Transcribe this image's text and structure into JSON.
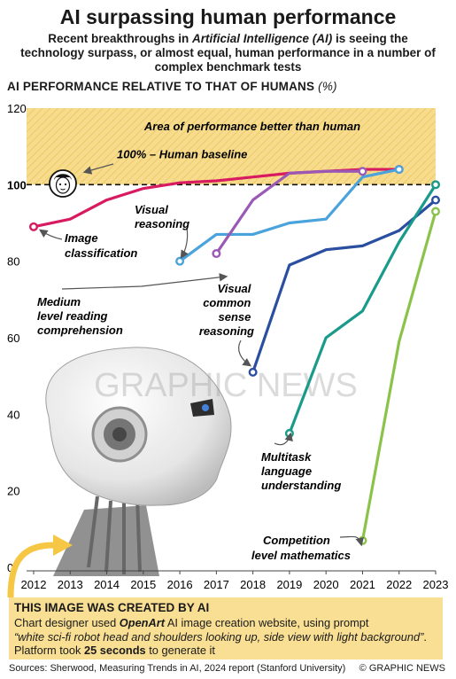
{
  "header": {
    "title": "AI surpassing human performance",
    "subtitle": "Recent breakthroughs in Artificial Intelligence (AI) is seeing the technology surpass, or almost equal, human performance in a number of complex benchmark tests",
    "axis_title": "AI PERFORMANCE RELATIVE TO THAT OF HUMANS",
    "axis_unit": "(%)"
  },
  "chart_data": {
    "type": "line",
    "title": "AI surpassing human performance",
    "ylabel": "AI PERFORMANCE RELATIVE TO THAT OF HUMANS (%)",
    "x_ticks": [
      "2012",
      "2013",
      "2014",
      "2015",
      "2016",
      "2017",
      "2018",
      "2019",
      "2020",
      "2021",
      "2022",
      "2023"
    ],
    "y_ticks": [
      "0",
      "20",
      "40",
      "60",
      "80",
      "100",
      "120"
    ],
    "ylim": [
      0,
      120
    ],
    "xlim": [
      2012,
      2023
    ],
    "baseline": 100,
    "grid": false,
    "series": [
      {
        "name": "Image classification",
        "color": "#d81b60",
        "x": [
          2012,
          2013,
          2014,
          2015,
          2016,
          2017,
          2018,
          2019,
          2020,
          2021,
          2022
        ],
        "values": [
          89,
          91,
          96,
          99,
          100.5,
          101,
          102,
          103,
          103.5,
          104,
          104
        ]
      },
      {
        "name": "Visual reasoning",
        "color": "#4aa3dc",
        "x": [
          2016,
          2017,
          2018,
          2019,
          2020,
          2021,
          2022
        ],
        "values": [
          80,
          87,
          87,
          90,
          91,
          102,
          104
        ]
      },
      {
        "name": "Medium level reading comprehension",
        "color": "#9b59b6",
        "x": [
          2017,
          2018,
          2019,
          2020,
          2021
        ],
        "values": [
          82,
          96,
          103,
          103.5,
          103.5
        ]
      },
      {
        "name": "Visual common sense reasoning",
        "color": "#2a4ea0",
        "x": [
          2018,
          2019,
          2020,
          2021,
          2022,
          2023
        ],
        "values": [
          51,
          79,
          83,
          84,
          88,
          96
        ]
      },
      {
        "name": "Multitask language understanding",
        "color": "#1a9a8a",
        "x": [
          2019,
          2020,
          2021,
          2022,
          2023
        ],
        "values": [
          35,
          60,
          67,
          85,
          100
        ]
      },
      {
        "name": "Competition level mathematics",
        "color": "#8bc34a",
        "x": [
          2021,
          2022,
          2023
        ],
        "values": [
          7,
          59,
          93
        ]
      }
    ],
    "annotations": {
      "better_area": "Area of performance better than human",
      "baseline_label": "100% – Human baseline"
    }
  },
  "labels": {
    "image_classification": [
      "Image",
      "classification"
    ],
    "visual_reasoning": [
      "Visual",
      "reasoning"
    ],
    "medium_reading": [
      "Medium",
      "level reading",
      "comprehension"
    ],
    "visual_common_sense": [
      "Visual",
      "common",
      "sense",
      "reasoning"
    ],
    "multitask": [
      "Multitask",
      "language",
      "understanding"
    ],
    "competition_math": [
      "Competition",
      "level mathematics"
    ]
  },
  "watermark": "GRAPHIC NEWS",
  "notice": {
    "heading": "THIS IMAGE WAS CREATED BY AI",
    "line1_pre": "Chart designer used ",
    "brand": "OpenArt",
    "line1_post": " AI image creation website, using prompt",
    "prompt": "“white sci-fi robot head and shoulders looking up, side view with light background”",
    "line3_pre": ". Platform took ",
    "seconds": "25 seconds",
    "line3_post": " to generate it"
  },
  "footer": {
    "sources": "Sources: Sherwood, Measuring Trends in AI, 2024 report (Stanford University)",
    "credit": "© GRAPHIC NEWS"
  },
  "colors": {
    "band": "#f6dc8c",
    "baseline": "#111111",
    "arrow": "#555555"
  }
}
